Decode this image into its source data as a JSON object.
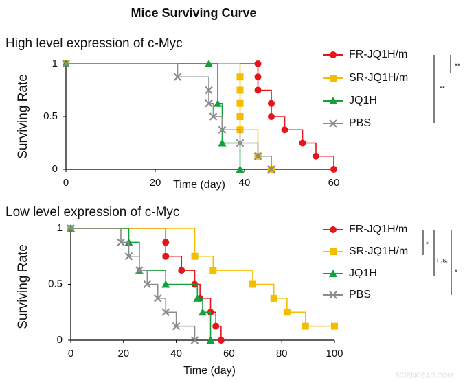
{
  "title": "Mice Surviving Curve",
  "watermark": "SCIENCEAO.COM",
  "chart_data": [
    {
      "type": "step",
      "title": "High level expression of c-Myc",
      "x_label": "Time (day)",
      "y_label": "Surviving Rate",
      "xlim": [
        0,
        60
      ],
      "xticks": [
        0,
        20,
        40,
        60
      ],
      "ylim": [
        0,
        1
      ],
      "yticks": [
        0,
        0.5,
        1
      ],
      "series": [
        {
          "name": "FR-JQ1H/m",
          "color": "#e8141c",
          "marker": "circle",
          "x": [
            0,
            43,
            43,
            43,
            46,
            46,
            49,
            53,
            56,
            60
          ],
          "values": [
            1,
            1,
            0.875,
            0.75,
            0.625,
            0.5,
            0.375,
            0.25,
            0.125,
            0
          ]
        },
        {
          "name": "SR-JQ1H/m",
          "color": "#f5bd00",
          "marker": "square",
          "x": [
            0,
            39,
            39,
            39,
            39,
            39,
            43,
            46
          ],
          "values": [
            1,
            0.875,
            0.75,
            0.625,
            0.5,
            0.375,
            0.125,
            0
          ]
        },
        {
          "name": "JQ1H",
          "color": "#16a03c",
          "marker": "triangle",
          "x": [
            0,
            32,
            34,
            35,
            39
          ],
          "values": [
            1,
            1,
            0.625,
            0.25,
            0
          ]
        },
        {
          "name": "PBS",
          "color": "#8c8c8c",
          "marker": "x",
          "x": [
            0,
            25,
            32,
            32,
            33,
            35,
            39,
            43,
            46
          ],
          "values": [
            1,
            0.875,
            0.75,
            0.625,
            0.5,
            0.375,
            0.25,
            0.125,
            0
          ]
        }
      ],
      "annotations": [
        "**",
        "**"
      ]
    },
    {
      "type": "step",
      "title": "Low level expression of c-Myc",
      "x_label": "Time (day)",
      "y_label": "Surviving Rate",
      "xlim": [
        0,
        100
      ],
      "xticks": [
        0,
        20,
        40,
        60,
        80,
        100
      ],
      "ylim": [
        0,
        1
      ],
      "yticks": [
        0,
        0.5,
        1
      ],
      "series": [
        {
          "name": "FR-JQ1H/m",
          "color": "#e8141c",
          "marker": "circle",
          "x": [
            0,
            36,
            36,
            42,
            47,
            49,
            53,
            55,
            57
          ],
          "values": [
            1,
            0.875,
            0.75,
            0.625,
            0.5,
            0.375,
            0.25,
            0.125,
            0
          ]
        },
        {
          "name": "SR-JQ1H/m",
          "color": "#f5bd00",
          "marker": "square",
          "x": [
            0,
            47,
            54,
            69,
            77,
            82,
            89,
            100
          ],
          "values": [
            1,
            0.75,
            0.625,
            0.5,
            0.375,
            0.25,
            0.125,
            0.125
          ]
        },
        {
          "name": "JQ1H",
          "color": "#16a03c",
          "marker": "triangle",
          "x": [
            0,
            22,
            26,
            36,
            48,
            50,
            53
          ],
          "values": [
            1,
            0.875,
            0.625,
            0.5,
            0.375,
            0.25,
            0
          ]
        },
        {
          "name": "PBS",
          "color": "#8c8c8c",
          "marker": "x",
          "x": [
            0,
            19,
            22,
            26,
            29,
            33,
            36,
            40,
            47
          ],
          "values": [
            1,
            0.875,
            0.75,
            0.625,
            0.5,
            0.375,
            0.25,
            0.125,
            0
          ]
        }
      ],
      "annotations": [
        "*",
        "n.s.",
        "*"
      ]
    }
  ]
}
